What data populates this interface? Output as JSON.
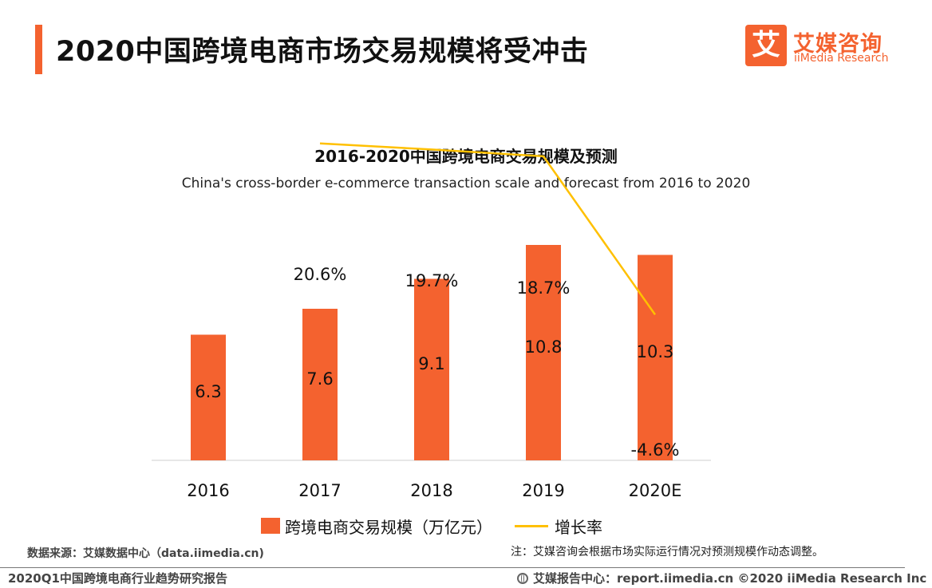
{
  "header": {
    "title": "2020中国跨境电商市场交易规模将受冲击",
    "logo_mark": "艾",
    "logo_cn": "艾媒咨询",
    "logo_en": "iiMedia Research"
  },
  "chart_data": {
    "type": "bar",
    "title": "2016-2020中国跨境电商交易规模及预测",
    "subtitle": "China's cross-border e-commerce transaction scale and forecast from 2016 to 2020",
    "categories": [
      "2016",
      "2017",
      "2018",
      "2019",
      "2020E"
    ],
    "series": [
      {
        "name": "跨境电商交易规模（万亿元）",
        "type": "bar",
        "values": [
          6.3,
          7.6,
          9.1,
          10.8,
          10.3
        ],
        "labels": [
          "6.3",
          "7.6",
          "9.1",
          "10.8",
          "10.3"
        ],
        "color": "#f4622f"
      },
      {
        "name": "增长率",
        "type": "line",
        "values": [
          null,
          20.6,
          19.7,
          18.7,
          -4.6
        ],
        "labels": [
          "",
          "20.6%",
          "19.7%",
          "18.7%",
          "-4.6%"
        ],
        "color": "#ffc000"
      }
    ],
    "ylim": [
      0,
      11
    ]
  },
  "legend": {
    "bar_label": "跨境电商交易规模（万亿元）",
    "line_label": "增长率"
  },
  "footer": {
    "source": "数据来源：艾媒数据中心（data.iimedia.cn)",
    "note": "注：艾媒咨询会根据市场实际运行情况对预测规模作动态调整。",
    "report_name": "2020Q1中国跨境电商行业趋势研究报告",
    "site": "艾媒报告中心：report.iimedia.cn   ©2020  iiMedia Research  Inc"
  }
}
